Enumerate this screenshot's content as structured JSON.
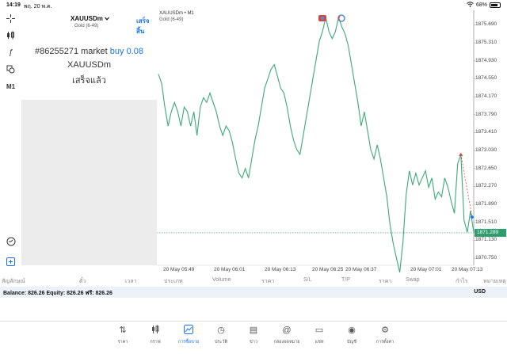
{
  "status_bar": {
    "time": "14:19",
    "date": "พฤ. 20 พ.ค.",
    "battery": "68%"
  },
  "toolbar": {
    "timeframe": "M1"
  },
  "order_panel": {
    "symbol": "XAUUSDm",
    "symbol_subtitle": "Gold (6-49)",
    "done_label": "เสร็จสิ้น",
    "order_prefix": "#86255271 market",
    "order_side": "buy 0.08",
    "order_symbol": "XAUUSDm",
    "order_status": "เสร็จแล้ว"
  },
  "chart": {
    "title": "XAUUSDm • M1",
    "subtitle": "Gold (6-49)",
    "current_price": "1871.289",
    "line_color": "#3aaa76",
    "y_ticks": [
      "1875.690",
      "1875.310",
      "1874.930",
      "1874.550",
      "1874.170",
      "1873.790",
      "1873.410",
      "1873.030",
      "1872.650",
      "1872.270",
      "1871.890",
      "1871.510",
      "1871.130",
      "1870.750"
    ],
    "x_ticks": [
      "20 May 05:49",
      "20 May 06:01",
      "20 May 06:13",
      "20 May 06:25",
      "20 May 06:37",
      "20 May 07:01",
      "20 May 07:13"
    ]
  },
  "chart_data": {
    "type": "line",
    "title": "XAUUSDm • M1",
    "xlabel": "",
    "ylabel": "",
    "ylim": [
      1870.6,
      1876.0
    ],
    "x": [
      0,
      1,
      2,
      3,
      4,
      5,
      6,
      7,
      8,
      9,
      10,
      11,
      12,
      13,
      14,
      15,
      16,
      17,
      18,
      19,
      20,
      21,
      22,
      23,
      24,
      25,
      26,
      27,
      28,
      29,
      30,
      31,
      32,
      33,
      34,
      35,
      36,
      37,
      38,
      39,
      40,
      41,
      42,
      43,
      44,
      45,
      46,
      47,
      48,
      49,
      50,
      51,
      52,
      53,
      54,
      55,
      56,
      57,
      58,
      59,
      60,
      61,
      62,
      63,
      64,
      65,
      66,
      67,
      68,
      69,
      70,
      71,
      72,
      73,
      74,
      75,
      76,
      77,
      78,
      79,
      80,
      81,
      82,
      83,
      84,
      85,
      86,
      87,
      88,
      89,
      90,
      91,
      92,
      93,
      94,
      95,
      96,
      97,
      98
    ],
    "series": [
      {
        "values": [
          1874.65,
          1874.45,
          1873.95,
          1873.55,
          1873.85,
          1874.05,
          1873.85,
          1873.55,
          1873.95,
          1873.85,
          1873.55,
          1873.85,
          1873.35,
          1873.95,
          1874.15,
          1874.05,
          1874.25,
          1874.05,
          1873.85,
          1873.55,
          1873.35,
          1873.55,
          1873.45,
          1873.2,
          1872.85,
          1872.55,
          1872.45,
          1872.65,
          1872.45,
          1872.85,
          1873.25,
          1873.55,
          1873.95,
          1874.35,
          1874.55,
          1874.75,
          1874.85,
          1874.6,
          1874.35,
          1874.25,
          1873.95,
          1873.55,
          1873.25,
          1873.05,
          1872.95,
          1873.35,
          1873.75,
          1874.15,
          1874.55,
          1874.95,
          1875.35,
          1875.55,
          1875.85,
          1875.55,
          1875.4,
          1875.55,
          1875.85,
          1875.65,
          1875.5,
          1875.25,
          1874.85,
          1874.45,
          1874.05,
          1873.55,
          1873.85,
          1873.45,
          1873.05,
          1872.85,
          1873.15,
          1872.85,
          1872.45,
          1872.05,
          1871.45,
          1871.05,
          1870.75,
          1870.45,
          1871.1,
          1872.1,
          1872.6,
          1872.3,
          1872.55,
          1872.3,
          1872.45,
          1872.6,
          1872.25,
          1872.45,
          1872.0,
          1872.15,
          1872.05,
          1872.45,
          1872.25,
          1871.95,
          1871.7,
          1872.75,
          1872.95,
          1871.55,
          1871.3,
          1871.75,
          1871.3
        ]
      }
    ],
    "annotations": [
      "buy 0.08"
    ]
  },
  "table_header": {
    "columns": [
      "สัญลักษณ์",
      "ตั๋ว",
      "เวลา",
      "ประเภท",
      "Volume",
      "ราคา",
      "S/L",
      "T/P",
      "ราคา",
      "Swap",
      "กำไร",
      "หมายเหตุ"
    ]
  },
  "balance_bar": {
    "text": "Balance: 826.26 Equity: 826.26 ฟรี: 826.26",
    "currency": "USD"
  },
  "bottom_nav": [
    {
      "label": "ราคา",
      "icon": "quotes-icon"
    },
    {
      "label": "กราฟ",
      "icon": "candles-icon"
    },
    {
      "label": "การซื้อขาย",
      "icon": "trade-icon"
    },
    {
      "label": "ประวัติ",
      "icon": "history-icon"
    },
    {
      "label": "ข่าว",
      "icon": "news-icon"
    },
    {
      "label": "กล่องจดหมาย",
      "icon": "mailbox-icon"
    },
    {
      "label": "แชท",
      "icon": "chat-icon"
    },
    {
      "label": "บัญชี",
      "icon": "account-icon"
    },
    {
      "label": "การตั้งค่า",
      "icon": "settings-icon"
    }
  ]
}
